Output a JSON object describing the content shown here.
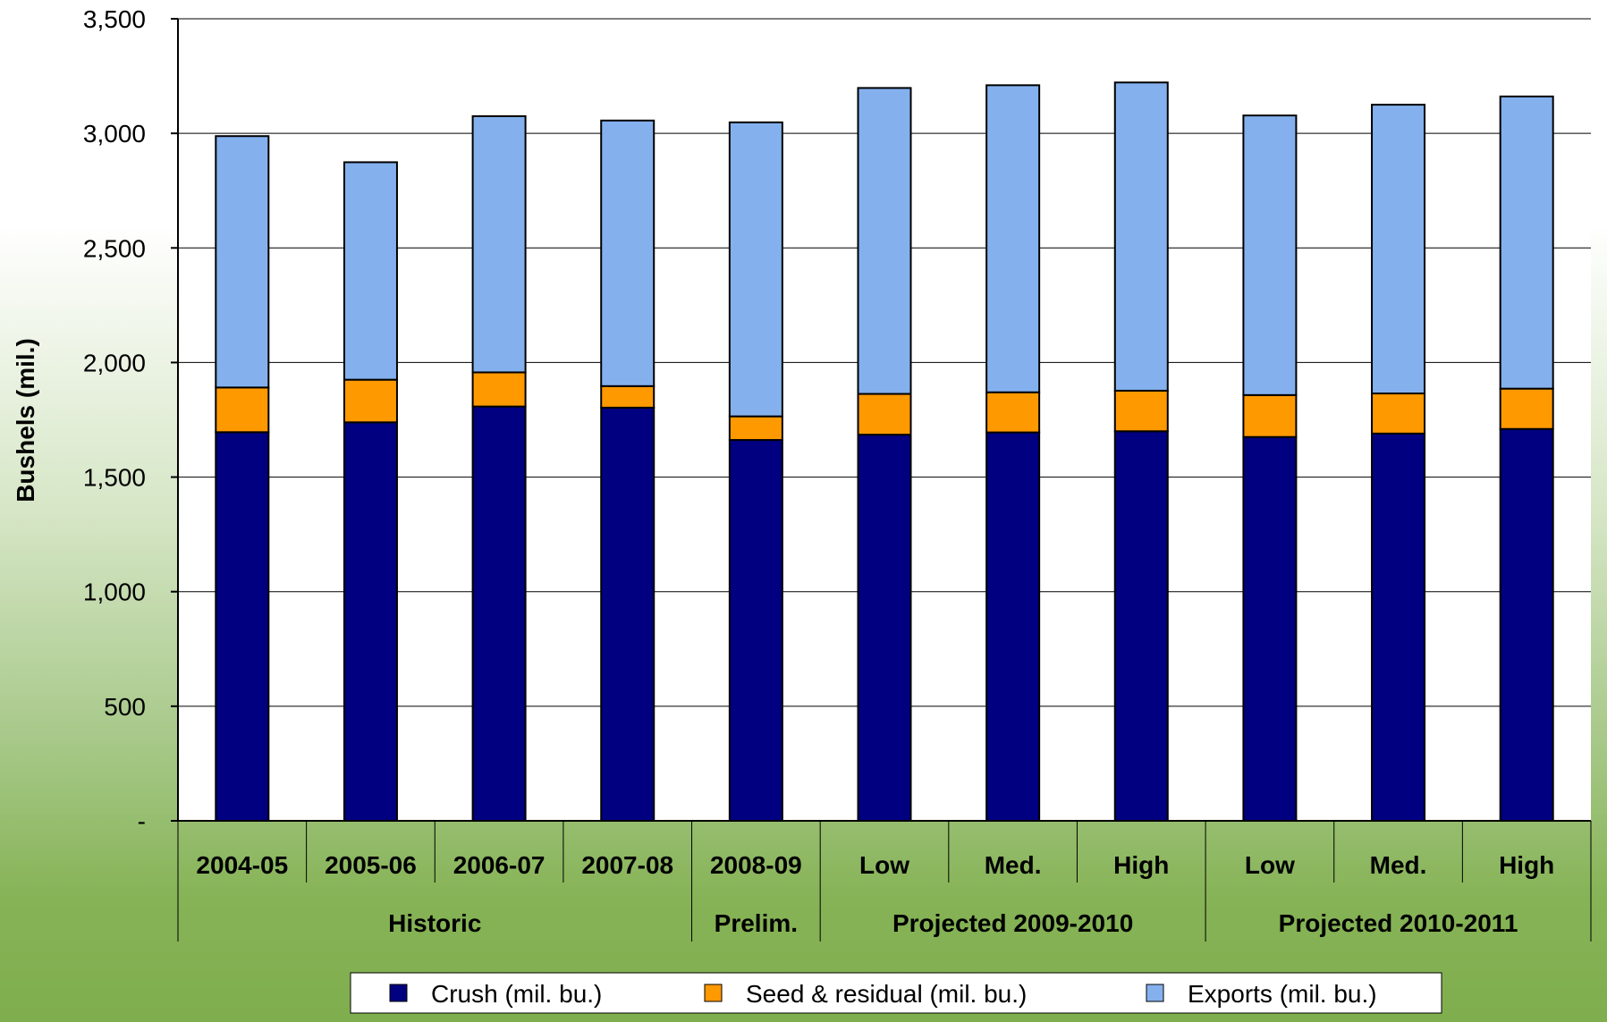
{
  "chart_data": {
    "type": "bar",
    "stacked": true,
    "ylabel": "Bushels (mil.)",
    "ylim": [
      0,
      3500
    ],
    "yticks": [
      0,
      500,
      1000,
      1500,
      2000,
      2500,
      3000,
      3500
    ],
    "ytick_labels": [
      "-",
      "500",
      "1,000",
      "1,500",
      "2,000",
      "2,500",
      "3,000",
      "3,500"
    ],
    "grid": true,
    "categories": [
      "2004-05",
      "2005-06",
      "2006-07",
      "2007-08",
      "2008-09",
      "Low",
      "Med.",
      "High",
      "Low",
      "Med.",
      "High"
    ],
    "groups": [
      {
        "label": "Historic",
        "span": [
          0,
          3
        ]
      },
      {
        "label": "Prelim.",
        "span": [
          4,
          4
        ]
      },
      {
        "label": "Projected 2009-2010",
        "span": [
          5,
          7
        ]
      },
      {
        "label": "Projected 2010-2011",
        "span": [
          8,
          10
        ]
      }
    ],
    "series": [
      {
        "name": "Crush (mil. bu.)",
        "color": "#000080",
        "values": [
          1696,
          1739,
          1808,
          1803,
          1662,
          1685,
          1695,
          1700,
          1675,
          1690,
          1710
        ]
      },
      {
        "name": "Seed & residual (mil. bu.)",
        "color": "#FF9900",
        "values": [
          195,
          186,
          149,
          94,
          103,
          178,
          175,
          177,
          183,
          175,
          176
        ]
      },
      {
        "name": "Exports (mil. bu.)",
        "color": "#84B1EE",
        "values": [
          1097,
          949,
          1118,
          1159,
          1283,
          1335,
          1340,
          1345,
          1220,
          1260,
          1275
        ]
      }
    ],
    "legend_position": "bottom"
  }
}
